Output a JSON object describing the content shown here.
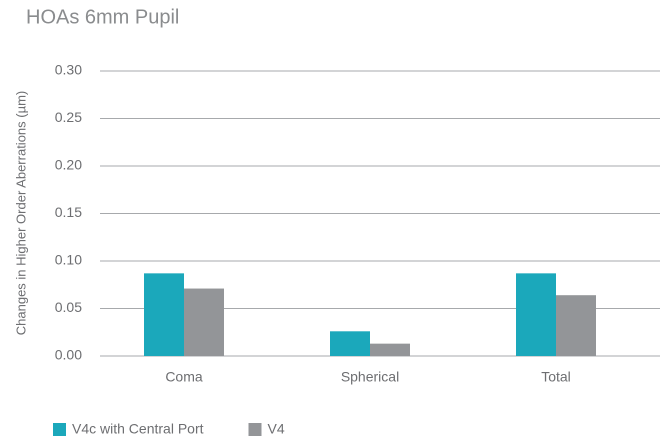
{
  "chart_data": {
    "type": "bar",
    "title": "HOAs 6mm Pupil",
    "y_label": "Changes in Higher Order Aberrations (µm)",
    "categories": [
      "Coma",
      "Spherical",
      "Total"
    ],
    "series": [
      {
        "name": "V4c with Central Port",
        "color": "#1ba8bb",
        "values": [
          0.087,
          0.026,
          0.087
        ]
      },
      {
        "name": "V4",
        "color": "#939598",
        "values": [
          0.071,
          0.013,
          0.064
        ]
      }
    ],
    "ylim": [
      0,
      0.3
    ],
    "yticks": [
      {
        "value": 0,
        "label": "0.00"
      },
      {
        "value": 0.05,
        "label": "0.05"
      },
      {
        "value": 0.1,
        "label": "0.10"
      },
      {
        "value": 0.15,
        "label": "0.15"
      },
      {
        "value": 0.2,
        "label": "0.20"
      },
      {
        "value": 0.25,
        "label": "0.25"
      },
      {
        "value": 0.3,
        "label": "0.30"
      }
    ],
    "grid": true,
    "legend": "bottom"
  }
}
